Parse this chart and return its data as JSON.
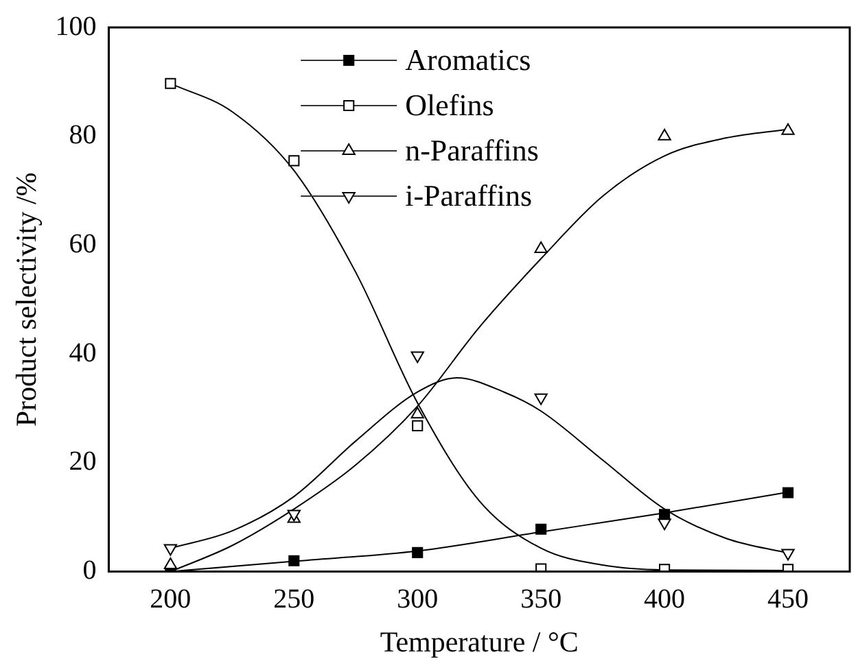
{
  "chart_data": {
    "type": "scatter",
    "xlabel": "Temperature / °C",
    "ylabel": "Product selectivity /%",
    "xlim": [
      175,
      475
    ],
    "xticks": [
      200,
      250,
      300,
      350,
      400,
      450
    ],
    "ylim": [
      0,
      100
    ],
    "yticks": [
      0,
      20,
      40,
      60,
      80,
      100
    ],
    "grid": false,
    "legend": "top",
    "series": [
      {
        "name": "Aromatics",
        "marker": "square",
        "color": "#000000",
        "x": [
          200,
          250,
          300,
          350,
          400,
          450
        ],
        "values": [
          0,
          2,
          3.5,
          7.8,
          10.5,
          14.5
        ]
      },
      {
        "name": "Olefins",
        "marker": "square",
        "color": "#ffffff",
        "x": [
          200,
          250,
          300,
          350,
          400,
          450
        ],
        "values": [
          89.7,
          75.5,
          26.8,
          0.5,
          0.4,
          0.4
        ]
      },
      {
        "name": "n-Paraffins",
        "marker": "triangle",
        "color": "#ffffff",
        "x": [
          200,
          250,
          300,
          350,
          400,
          450
        ],
        "values": [
          1.2,
          9.7,
          28.9,
          59.3,
          80,
          81
        ]
      },
      {
        "name": "i-Paraffins",
        "marker": "triangle-down",
        "color": "#ffffff",
        "x": [
          200,
          250,
          300,
          350,
          400,
          450
        ],
        "values": [
          4.3,
          10.6,
          39.7,
          32,
          9,
          3.4
        ]
      },
      {
        "type": "line",
        "marker": "none",
        "color": "#000000",
        "x": [
          200,
          250,
          300,
          350,
          400,
          450
        ],
        "values": [
          0,
          1.9,
          3.8,
          7.3,
          10.8,
          14.6
        ]
      },
      {
        "type": "line",
        "marker": "none",
        "color": "#000000",
        "x": [
          200,
          225,
          250,
          275,
          300,
          325,
          350,
          375,
          400,
          450
        ],
        "values": [
          89.7,
          84.5,
          73.7,
          55,
          31,
          13,
          4.3,
          1.2,
          0.3,
          0.2
        ]
      },
      {
        "type": "line",
        "marker": "none",
        "color": "#000000",
        "x": [
          200,
          225,
          250,
          275,
          300,
          325,
          350,
          375,
          400,
          425,
          450
        ],
        "values": [
          0,
          4.8,
          11.5,
          19.6,
          30.4,
          44.9,
          57.5,
          69,
          76.4,
          79.7,
          81.3
        ]
      },
      {
        "type": "line",
        "marker": "none",
        "color": "#000000",
        "x": [
          200,
          225,
          250,
          275,
          300,
          316,
          335,
          350,
          375,
          400,
          425,
          450
        ],
        "values": [
          4.3,
          7.5,
          13.8,
          24,
          33,
          35.6,
          33,
          29.5,
          20.5,
          11.5,
          6.1,
          3.4
        ]
      }
    ]
  }
}
